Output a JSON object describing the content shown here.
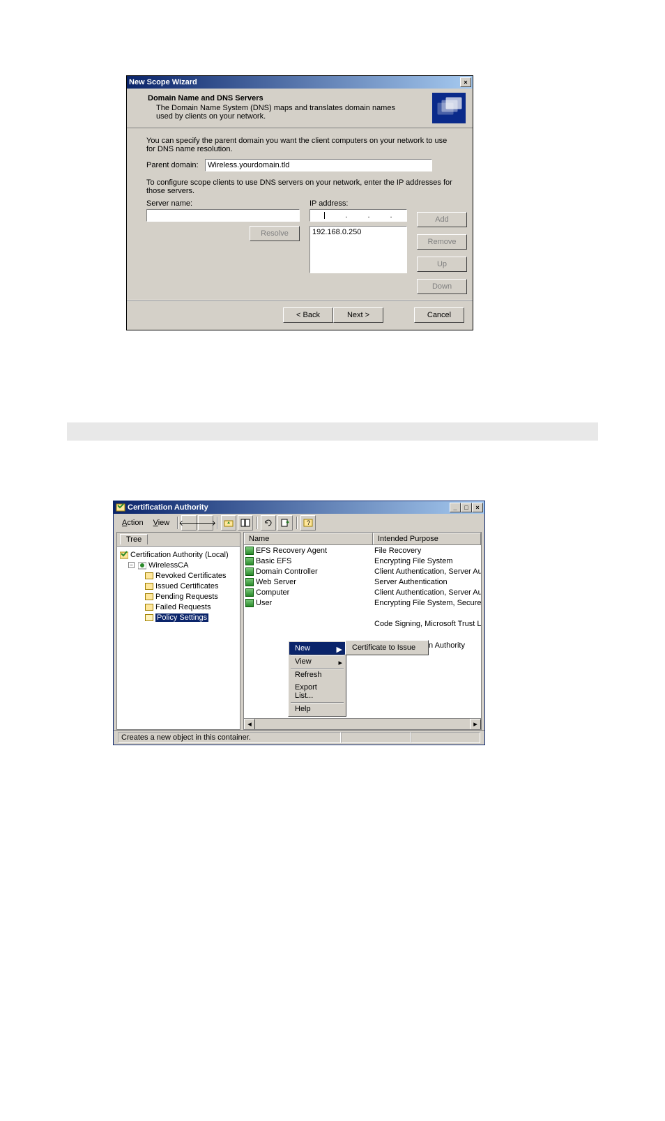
{
  "wizard": {
    "title": "New Scope Wizard",
    "head_title": "Domain Name and DNS Servers",
    "head_desc": "The Domain Name System (DNS) maps and translates domain names used by clients on your network.",
    "body_intro": "You can specify the parent domain you want the client computers on your network to use for DNS name resolution.",
    "parent_domain_label": "Parent domain:",
    "parent_domain_value": "Wireless.yourdomain.tld",
    "config_text": "To configure scope clients to use DNS servers on your network, enter the IP addresses for those servers.",
    "server_name_label": "Server name:",
    "ip_address_label": "IP address:",
    "resolve_btn": "Resolve",
    "add_btn": "Add",
    "remove_btn": "Remove",
    "up_btn": "Up",
    "down_btn": "Down",
    "ip_list_item": "192.168.0.250",
    "back_btn": "< Back",
    "next_btn": "Next >",
    "cancel_btn": "Cancel",
    "close_x": "×"
  },
  "mmc": {
    "title": "Certification Authority",
    "menu_action": "Action",
    "menu_view": "View",
    "tree_tab": "Tree",
    "tree_root": "Certification Authority (Local)",
    "tree_ca": "WirelessCA",
    "tree_items": {
      "revoked": "Revoked Certificates",
      "issued": "Issued Certificates",
      "pending": "Pending Requests",
      "failed": "Failed Requests",
      "policy": "Policy Settings"
    },
    "col_name": "Name",
    "col_purpose": "Intended Purpose",
    "rows": [
      {
        "name": "EFS Recovery Agent",
        "purpose": "File Recovery"
      },
      {
        "name": "Basic EFS",
        "purpose": "Encrypting File System"
      },
      {
        "name": "Domain Controller",
        "purpose": "Client Authentication, Server Authentic"
      },
      {
        "name": "Web Server",
        "purpose": "Server Authentication"
      },
      {
        "name": "Computer",
        "purpose": "Client Authentication, Server Authentic"
      },
      {
        "name": "User",
        "purpose": "Encrypting File System, Secure Email, C"
      },
      {
        "name": "",
        "purpose": ""
      },
      {
        "name": "",
        "purpose": "Code Signing, Microsoft Trust List Signi"
      }
    ],
    "ctx": {
      "new": "New",
      "view": "View",
      "refresh": "Refresh",
      "export": "Export List...",
      "help": "Help"
    },
    "sub_cert": "Certificate to Issue",
    "overlay_text": "n Authority",
    "status": "Creates a new object in this container.",
    "minimize": "_",
    "maximize": "□",
    "close": "×"
  }
}
